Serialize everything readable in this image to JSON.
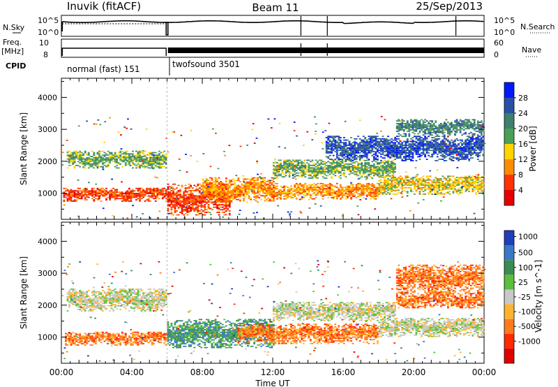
{
  "header": {
    "radar": "Inuvik (fitACF)",
    "beam": "Beam 11",
    "date": "25/Sep/2013"
  },
  "summary": {
    "nsky_label": "N.Sky",
    "nsky_ticks": [
      "10^5",
      "10^0"
    ],
    "nsearch_label": "N.Search",
    "nsearch_ticks": [
      "10^5",
      "10^0"
    ],
    "freq_label": "Freq.",
    "freq_unit": "[MHz]",
    "freq_ticks": [
      "10",
      "8"
    ],
    "nave_label": "Nave",
    "nave_ticks": [
      "60",
      "0"
    ],
    "cpid_label": "CPID",
    "cpid_modes": [
      {
        "name": "normal (fast) 151",
        "start_hour": 0,
        "end_hour": 6
      },
      {
        "name": "twofsound 3501",
        "start_hour": 6,
        "end_hour": 24
      }
    ]
  },
  "axes": {
    "xlabel": "Time UT",
    "ylabel": "Slant Range [km]",
    "x_ticks": [
      "00:00",
      "04:00",
      "08:00",
      "12:00",
      "16:00",
      "20:00",
      "00:00"
    ],
    "x_tick_hours": [
      0,
      4,
      8,
      12,
      16,
      20,
      24
    ],
    "y_ticks": [
      1000,
      2000,
      3000,
      4000
    ],
    "xlim_hours": [
      0,
      24
    ],
    "ylim_km": [
      180,
      4600
    ]
  },
  "chart_data": [
    {
      "type": "heatmap",
      "name": "power",
      "colorbar_label": "Power [dB]",
      "colorbar_ticks": [
        "4",
        "8",
        "12",
        "16",
        "20",
        "24",
        "28"
      ],
      "colors": [
        "#0019ff",
        "#2b4ea6",
        "#3f7f6e",
        "#4aa055",
        "#ffd400",
        "#ff8c00",
        "#ff3300",
        "#e60000"
      ],
      "bands": [
        {
          "start": 0.1,
          "end": 5.9,
          "center_km": 950,
          "width_km": 220,
          "class": 6
        },
        {
          "start": 0.3,
          "end": 5.9,
          "center_km": 2050,
          "width_km": 280,
          "class": 3
        },
        {
          "start": 6.0,
          "end": 9.5,
          "center_km": 800,
          "width_km": 500,
          "class": 6
        },
        {
          "start": 8.0,
          "end": 12.0,
          "center_km": 1100,
          "width_km": 400,
          "class": 5
        },
        {
          "start": 12.0,
          "end": 18.0,
          "center_km": 1050,
          "width_km": 250,
          "class": 5
        },
        {
          "start": 12.0,
          "end": 19.0,
          "center_km": 1750,
          "width_km": 300,
          "class": 3
        },
        {
          "start": 18.0,
          "end": 24.0,
          "center_km": 1250,
          "width_km": 300,
          "class": 4
        },
        {
          "start": 15.0,
          "end": 24.0,
          "center_km": 2400,
          "width_km": 400,
          "class": 1
        },
        {
          "start": 19.0,
          "end": 24.0,
          "center_km": 3050,
          "width_km": 250,
          "class": 2
        }
      ]
    },
    {
      "type": "heatmap",
      "name": "velocity",
      "colorbar_label": "Velocity [m s^-1]",
      "colorbar_ticks": [
        "1000",
        "500",
        "100",
        "25",
        "-25",
        "-100",
        "-500",
        "-1000"
      ],
      "colors": [
        "#1f3fb8",
        "#3b78c8",
        "#3c8a55",
        "#58c03a",
        "#c8c8c8",
        "#ffb430",
        "#ff7a1a",
        "#ff2a00",
        "#e00000"
      ],
      "bands": [
        {
          "start": 0.2,
          "end": 5.9,
          "center_km": 950,
          "width_km": 220,
          "class": 6
        },
        {
          "start": 0.3,
          "end": 5.9,
          "center_km": 2150,
          "width_km": 350,
          "class": 4
        },
        {
          "start": 6.0,
          "end": 12.0,
          "center_km": 1100,
          "width_km": 450,
          "class": 2
        },
        {
          "start": 10.0,
          "end": 18.0,
          "center_km": 1100,
          "width_km": 320,
          "class": 6
        },
        {
          "start": 12.0,
          "end": 19.0,
          "center_km": 1800,
          "width_km": 300,
          "class": 4
        },
        {
          "start": 18.0,
          "end": 24.0,
          "center_km": 1300,
          "width_km": 300,
          "class": 4
        },
        {
          "start": 19.0,
          "end": 24.0,
          "center_km": 2800,
          "width_km": 450,
          "class": 6
        },
        {
          "start": 19.0,
          "end": 24.0,
          "center_km": 2150,
          "width_km": 250,
          "class": 6
        }
      ]
    }
  ]
}
